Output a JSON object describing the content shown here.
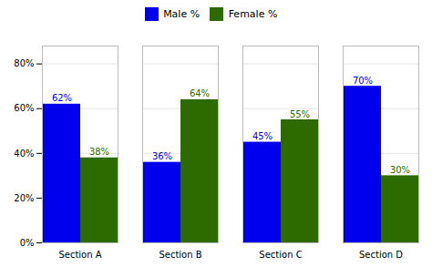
{
  "chart_data": {
    "type": "bar",
    "categories": [
      "Section A",
      "Section B",
      "Section C",
      "Section D"
    ],
    "series": [
      {
        "name": "Male %",
        "color": "#0000ee",
        "values": [
          0.62,
          0.36,
          0.45,
          0.7
        ],
        "value_labels": [
          "62%",
          "36%",
          "45%",
          "70%"
        ]
      },
      {
        "name": "Female %",
        "color": "#2d6a00",
        "values": [
          0.38,
          0.64,
          0.55,
          0.3
        ],
        "value_labels": [
          "38%",
          "64%",
          "55%",
          "30%"
        ]
      }
    ],
    "ylim": [
      0,
      0.88
    ],
    "yticks": [
      {
        "value": 0,
        "label": "0%"
      },
      {
        "value": 0.2,
        "label": "20%"
      },
      {
        "value": 0.4,
        "label": "40%"
      },
      {
        "value": 0.6,
        "label": "60%"
      },
      {
        "value": 0.8,
        "label": "80%"
      }
    ],
    "grid": true,
    "legend": "top",
    "data_labels": true
  }
}
